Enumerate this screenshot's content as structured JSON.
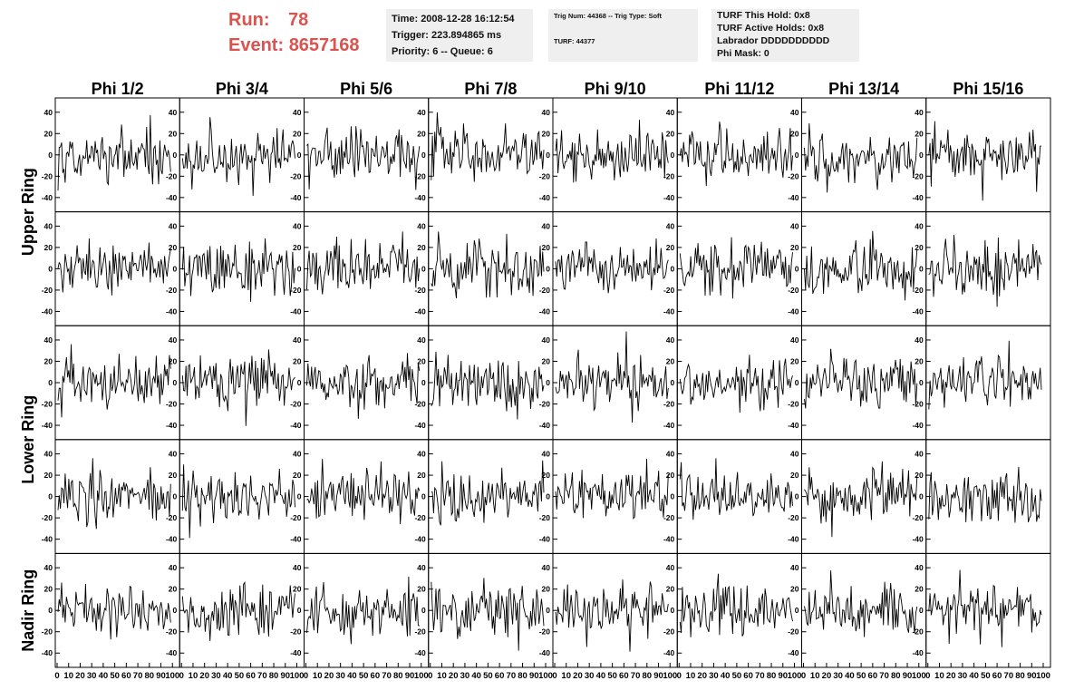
{
  "header": {
    "run_label": "Run:",
    "run_value": "78",
    "event_label": "Event:",
    "event_value": "8657168",
    "time": "Time: 2008-12-28 16:12:54",
    "trigger": "Trigger: 223.894865 ms",
    "priority": "Priority: 6 -- Queue: 6",
    "trig_num": "Trig Num: 44368 -- Trig Type: Soft",
    "turf": "TURF: 44377",
    "turf_this_hold": "TURF This Hold: 0x8",
    "turf_active_holds": "TURF Active Holds: 0x8",
    "labrador": "Labrador DDDDDDDDDD",
    "phi_mask": "Phi Mask: 0"
  },
  "colors": {
    "header_accent": "#d9534f",
    "trace": "#000000",
    "info_bg": "#efefef"
  },
  "chart_data": {
    "type": "line",
    "columns": [
      "Phi 1/2",
      "Phi 3/4",
      "Phi 5/6",
      "Phi 7/8",
      "Phi 9/10",
      "Phi 11/12",
      "Phi 13/14",
      "Phi 15/16"
    ],
    "rows": [
      "Upper Ring",
      "Lower Ring",
      "Nadir Ring"
    ],
    "xlim": [
      0,
      100
    ],
    "ylim": [
      -50,
      50
    ],
    "y_ticks": [
      -40,
      -20,
      0,
      20,
      40
    ],
    "x_ticks": [
      "0",
      "10",
      "20",
      "30",
      "40",
      "50",
      "60",
      "70",
      "80",
      "90",
      "100"
    ],
    "n_samples": 95,
    "waveform_amplitude": 18,
    "grid": false
  }
}
